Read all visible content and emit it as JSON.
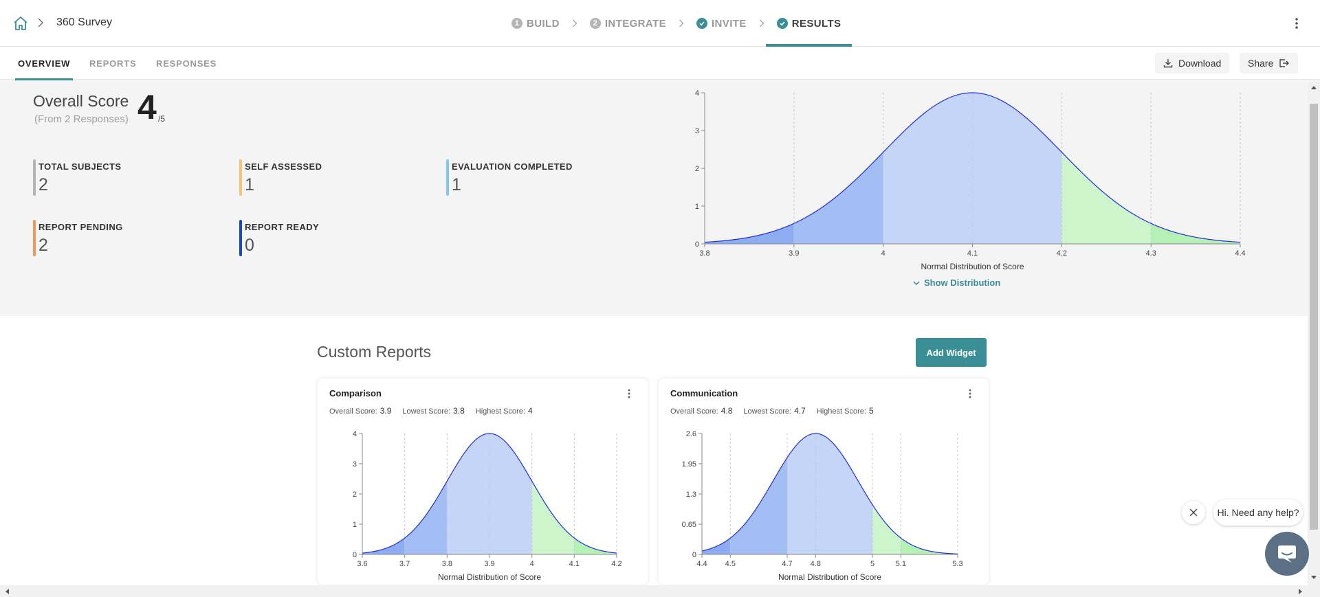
{
  "header": {
    "title": "360 Survey",
    "steps": [
      {
        "num": "1",
        "label": "BUILD"
      },
      {
        "num": "2",
        "label": "INTEGRATE"
      },
      {
        "num": "",
        "label": "INVITE"
      },
      {
        "num": "",
        "label": "RESULTS"
      }
    ]
  },
  "tabs": {
    "overview": "OVERVIEW",
    "reports": "REPORTS",
    "responses": "RESPONSES"
  },
  "actions": {
    "download": "Download",
    "share": "Share"
  },
  "overall": {
    "title": "Overall Score",
    "subtitle": "(From 2 Responses)",
    "score": "4",
    "denominator": "/5"
  },
  "stats": [
    {
      "label": "TOTAL SUBJECTS",
      "value": "2",
      "color": "#b4b4b4"
    },
    {
      "label": "SELF ASSESSED",
      "value": "1",
      "color": "#f5c27a"
    },
    {
      "label": "EVALUATION COMPLETED",
      "value": "1",
      "color": "#86c7f0"
    },
    {
      "label": "REPORT PENDING",
      "value": "2",
      "color": "#ef9a5b"
    },
    {
      "label": "REPORT READY",
      "value": "0",
      "color": "#1c46c0"
    }
  ],
  "show_distribution": "Show Distribution",
  "custom_reports": {
    "title": "Custom Reports",
    "add_widget": "Add Widget",
    "cards": [
      {
        "title": "Comparison",
        "overall_label": "Overall Score:",
        "overall": "3.9",
        "lowest_label": "Lowest Score:",
        "lowest": "3.8",
        "highest_label": "Highest Score:",
        "highest": "4"
      },
      {
        "title": "Communication",
        "overall_label": "Overall Score:",
        "overall": "4.8",
        "lowest_label": "Lowest Score:",
        "lowest": "4.7",
        "highest_label": "Highest Score:",
        "highest": "5"
      }
    ]
  },
  "help": {
    "text": "Hi. Need any help?"
  },
  "chart_data": [
    {
      "type": "area",
      "title": "",
      "xlabel": "Normal Distribution of Score",
      "ylabel": "",
      "mean": 4.1,
      "sd": 0.1,
      "peak": 4,
      "xlim": [
        3.8,
        4.4
      ],
      "ylim": [
        0,
        4
      ],
      "x_ticks": [
        "3.8",
        "3.9",
        "4",
        "4.1",
        "4.2",
        "4.3",
        "4.4"
      ],
      "y_ticks": [
        "0",
        "1",
        "2",
        "3",
        "4"
      ],
      "bands": [
        {
          "from": 3.8,
          "to": 3.9,
          "color": "#8eacf2"
        },
        {
          "from": 3.9,
          "to": 4.0,
          "color": "#a3bdf5"
        },
        {
          "from": 4.0,
          "to": 4.2,
          "color": "#c4d5f8"
        },
        {
          "from": 4.2,
          "to": 4.3,
          "color": "#cdf5cc"
        },
        {
          "from": 4.3,
          "to": 4.4,
          "color": "#b5f0b4"
        }
      ]
    },
    {
      "type": "area",
      "title": "Comparison",
      "xlabel": "Normal Distribution of Score",
      "ylabel": "",
      "mean": 3.9,
      "sd": 0.1,
      "peak": 4,
      "xlim": [
        3.6,
        4.2
      ],
      "ylim": [
        0,
        4
      ],
      "x_ticks": [
        "3.6",
        "3.7",
        "3.8",
        "3.9",
        "4",
        "4.1",
        "4.2"
      ],
      "y_ticks": [
        "0",
        "1",
        "2",
        "3",
        "4"
      ],
      "bands": [
        {
          "from": 3.6,
          "to": 3.7,
          "color": "#8eacf2"
        },
        {
          "from": 3.7,
          "to": 3.8,
          "color": "#a3bdf5"
        },
        {
          "from": 3.8,
          "to": 4.0,
          "color": "#c4d5f8"
        },
        {
          "from": 4.0,
          "to": 4.1,
          "color": "#cdf5cc"
        },
        {
          "from": 4.1,
          "to": 4.2,
          "color": "#b5f0b4"
        }
      ]
    },
    {
      "type": "area",
      "title": "Communication",
      "xlabel": "Normal Distribution of Score",
      "ylabel": "",
      "mean": 4.8,
      "sd": 0.15,
      "peak": 2.6,
      "xlim": [
        4.4,
        5.3
      ],
      "ylim": [
        0,
        2.6
      ],
      "x_ticks": [
        "4.4",
        "4.5",
        "4.7",
        "4.8",
        "5",
        "5.1",
        "5.3"
      ],
      "y_ticks": [
        "0",
        "0.65",
        "1.3",
        "1.95",
        "2.6"
      ],
      "bands": [
        {
          "from": 4.4,
          "to": 4.5,
          "color": "#8eacf2"
        },
        {
          "from": 4.5,
          "to": 4.7,
          "color": "#a3bdf5"
        },
        {
          "from": 4.7,
          "to": 5.0,
          "color": "#c4d5f8"
        },
        {
          "from": 5.0,
          "to": 5.1,
          "color": "#cdf5cc"
        },
        {
          "from": 5.1,
          "to": 5.3,
          "color": "#b5f0b4"
        }
      ]
    }
  ]
}
